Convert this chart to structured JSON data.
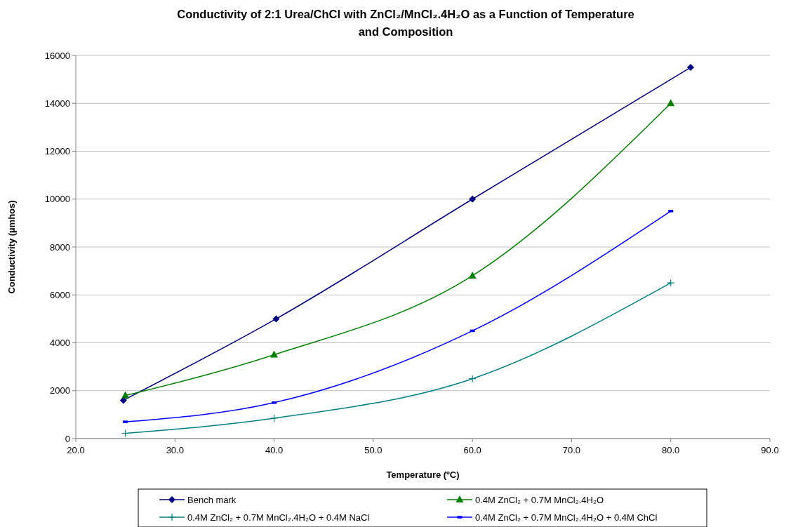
{
  "chart_data": {
    "type": "line",
    "title": "Conductivity of 2:1 Urea/ChCl with ZnCl₂/MnCl₂.4H₂O as a Function of Temperature and Composition",
    "xlabel": "Temperature (ºC)",
    "ylabel": "Conductivity (µmhos)",
    "xlim": [
      20,
      90
    ],
    "xticks": [
      {
        "value": 20,
        "label": "20.0"
      },
      {
        "value": 30,
        "label": "30.0"
      },
      {
        "value": 40,
        "label": "40.0"
      },
      {
        "value": 50,
        "label": "50.0"
      },
      {
        "value": 60,
        "label": "60.0"
      },
      {
        "value": 70,
        "label": "70.0"
      },
      {
        "value": 80,
        "label": "80.0"
      },
      {
        "value": 90,
        "label": "90.0"
      }
    ],
    "ylim": [
      0,
      16000
    ],
    "yticks": [
      0,
      2000,
      4000,
      6000,
      8000,
      10000,
      12000,
      14000,
      16000
    ],
    "grid": "y",
    "legend": "bottom",
    "series": [
      {
        "name": "Bench mark",
        "color": "#000080",
        "marker": "diamond",
        "x": [
          24.8,
          40.2,
          60,
          82
        ],
        "values": [
          1600,
          5000,
          10000,
          15500
        ]
      },
      {
        "name": "0.4M ZnCl₂ + 0.7M MnCl₂.4H₂O",
        "color": "#008000",
        "marker": "triangle",
        "x": [
          25,
          40,
          60,
          80
        ],
        "values": [
          1800,
          3500,
          6800,
          14000
        ]
      },
      {
        "name": "0.4M ZnCl₂ + 0.7M MnCl₂.4H₂O + 0.4M NaCl",
        "color": "#008080",
        "marker": "cross",
        "x": [
          25,
          40,
          60,
          80
        ],
        "values": [
          220,
          850,
          2500,
          6500
        ]
      },
      {
        "name": "0.4M ZnCl₂ + 0.7M MnCl₂.4H₂O + 0.4M ChCl",
        "color": "#0000ff",
        "marker": "square",
        "x": [
          25,
          40,
          60,
          80
        ],
        "values": [
          700,
          1500,
          4500,
          9500
        ]
      }
    ]
  }
}
